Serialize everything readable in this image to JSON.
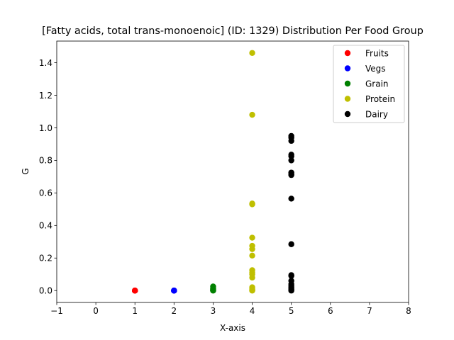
{
  "chart_data": {
    "type": "scatter",
    "title": "[Fatty acids, total trans-monoenoic] (ID: 1329) Distribution Per Food Group",
    "xlabel": "X-axis",
    "ylabel": "G",
    "xlim": [
      -1,
      8
    ],
    "ylim": [
      -0.073,
      1.533
    ],
    "x_ticks": [
      -1,
      0,
      1,
      2,
      3,
      4,
      5,
      6,
      7,
      8
    ],
    "y_ticks": [
      0.0,
      0.2,
      0.4,
      0.6,
      0.8,
      1.0,
      1.2,
      1.4
    ],
    "x_tick_labels": [
      "−1",
      "0",
      "1",
      "2",
      "3",
      "4",
      "5",
      "6",
      "7",
      "8"
    ],
    "y_tick_labels": [
      "0.0",
      "0.2",
      "0.4",
      "0.6",
      "0.8",
      "1.0",
      "1.2",
      "1.4"
    ],
    "grid": false,
    "legend_position": "top-right",
    "series": [
      {
        "name": "Fruits",
        "color": "#ff0000",
        "x": [
          1,
          1,
          1,
          1
        ],
        "y": [
          0,
          0,
          0,
          0
        ]
      },
      {
        "name": "Vegs",
        "color": "#0000ff",
        "x": [
          2,
          2,
          2,
          2
        ],
        "y": [
          0,
          0,
          0,
          0
        ]
      },
      {
        "name": "Grain",
        "color": "#008000",
        "x": [
          3,
          3,
          3,
          3,
          3,
          3,
          3,
          3
        ],
        "y": [
          0.025,
          0.015,
          0.01,
          0.006,
          0.003,
          0.002,
          0.001,
          0
        ]
      },
      {
        "name": "Protein",
        "color": "#bfbf00",
        "x": [
          4,
          4,
          4,
          4,
          4,
          4,
          4,
          4,
          4,
          4,
          4,
          4,
          4,
          4,
          4,
          4,
          4,
          4
        ],
        "y": [
          1.46,
          1.08,
          0.535,
          0.53,
          0.325,
          0.275,
          0.255,
          0.215,
          0.125,
          0.11,
          0.1,
          0.08,
          0.02,
          0.01,
          0.005,
          0.002,
          0.001,
          0
        ]
      },
      {
        "name": "Dairy",
        "color": "#000000",
        "x": [
          5,
          5,
          5,
          5,
          5,
          5,
          5,
          5,
          5,
          5,
          5,
          5,
          5,
          5,
          5,
          5,
          5,
          5,
          5,
          5
        ],
        "y": [
          0.95,
          0.94,
          0.92,
          0.835,
          0.825,
          0.8,
          0.725,
          0.715,
          0.71,
          0.565,
          0.285,
          0.095,
          0.09,
          0.06,
          0.04,
          0.03,
          0.02,
          0.01,
          0.005,
          0
        ]
      }
    ]
  }
}
